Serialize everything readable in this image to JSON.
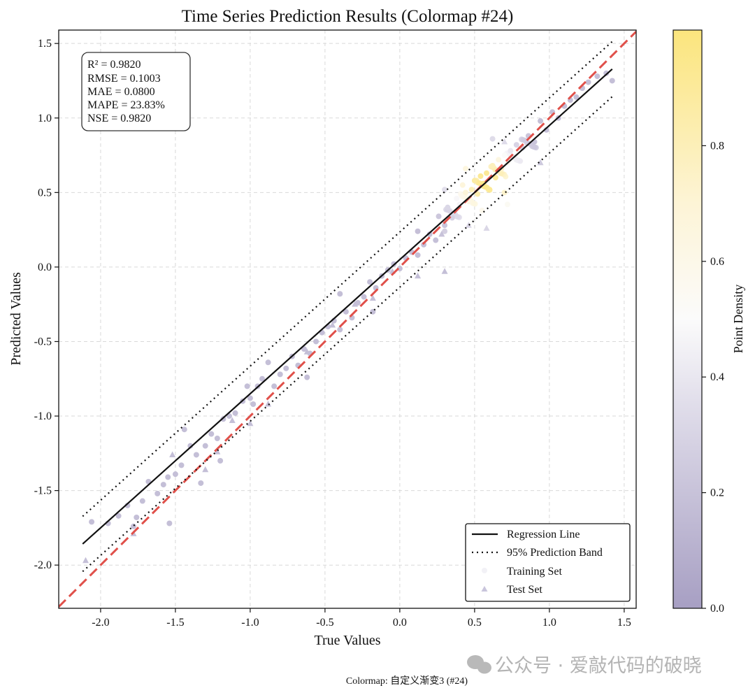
{
  "chart_data": {
    "type": "scatter",
    "title": "Time  Series  Prediction  Results  (Colormap  #24)",
    "xlabel": "True  Values",
    "ylabel": "Predicted  Values",
    "xlim": [
      -2.28,
      1.58
    ],
    "ylim": [
      -2.29,
      1.59
    ],
    "x_ticks": [
      -2.0,
      -1.5,
      -1.0,
      -0.5,
      0.0,
      0.5,
      1.0,
      1.5
    ],
    "y_ticks": [
      -2.0,
      -1.5,
      -1.0,
      -0.5,
      0.0,
      0.5,
      1.0,
      1.5
    ],
    "x_tick_labels": [
      "-2.0",
      "-1.5",
      "-1.0",
      "-0.5",
      "0.0",
      "0.5",
      "1.0",
      "1.5"
    ],
    "y_tick_labels": [
      "-2.0",
      "-1.5",
      "-1.0",
      "-0.5",
      "0.0",
      "0.5",
      "1.0",
      "1.5"
    ],
    "grid": true,
    "stats_lines": [
      "R²  =  0.9820",
      "RMSE  =  0.1003",
      "MAE  =  0.0800",
      "MAPE  =  23.83%",
      "NSE  =  0.9820"
    ],
    "regression": {
      "slope": 0.9,
      "intercept": 0.05,
      "x_range": [
        -2.12,
        1.42
      ]
    },
    "prediction_band": {
      "half_width": 0.185
    },
    "identity_line": {
      "slope": 1.0,
      "intercept": 0.0
    },
    "legend": {
      "position": "lower-right",
      "entries": [
        "Regression  Line",
        "95%  Prediction  Band",
        "Training  Set",
        "Test  Set"
      ]
    },
    "colorbar": {
      "label": "Point  Density",
      "range": [
        0.0,
        1.0
      ],
      "ticks": [
        0.0,
        0.2,
        0.4,
        0.6,
        0.8
      ],
      "tick_labels": [
        "0.0",
        "0.2",
        "0.4",
        "0.6",
        "0.8"
      ],
      "colors": [
        "#a79fc3",
        "#eceaf1",
        "#fdf6dc",
        "#fbe57d"
      ]
    },
    "series": [
      {
        "name": "Training  Set",
        "marker": "circle",
        "points": [
          [
            -2.06,
            -1.71
          ],
          [
            -1.95,
            -1.72
          ],
          [
            -1.88,
            -1.67
          ],
          [
            -1.82,
            -1.6
          ],
          [
            -1.78,
            -1.74
          ],
          [
            -1.72,
            -1.57
          ],
          [
            -1.68,
            -1.44
          ],
          [
            -1.62,
            -1.52
          ],
          [
            -1.58,
            -1.46
          ],
          [
            -1.55,
            -1.41
          ],
          [
            -1.5,
            -1.39
          ],
          [
            -1.46,
            -1.33
          ],
          [
            -1.44,
            -1.09
          ],
          [
            -1.4,
            -1.2
          ],
          [
            -1.36,
            -1.26
          ],
          [
            -1.33,
            -1.45
          ],
          [
            -1.3,
            -1.2
          ],
          [
            -1.26,
            -1.12
          ],
          [
            -1.22,
            -1.15
          ],
          [
            -1.18,
            -1.02
          ],
          [
            -1.14,
            -1.0
          ],
          [
            -1.1,
            -0.98
          ],
          [
            -1.05,
            -0.9
          ],
          [
            -1.0,
            -0.88
          ],
          [
            -0.98,
            -0.92
          ],
          [
            -0.95,
            -0.8
          ],
          [
            -0.92,
            -0.75
          ],
          [
            -0.88,
            -0.64
          ],
          [
            -0.84,
            -0.8
          ],
          [
            -0.8,
            -0.72
          ],
          [
            -0.76,
            -0.68
          ],
          [
            -0.72,
            -0.6
          ],
          [
            -0.68,
            -0.66
          ],
          [
            -0.64,
            -0.55
          ],
          [
            -0.6,
            -0.58
          ],
          [
            -0.56,
            -0.5
          ],
          [
            -0.52,
            -0.44
          ],
          [
            -0.48,
            -0.4
          ],
          [
            -0.44,
            -0.36
          ],
          [
            -0.4,
            -0.42
          ],
          [
            -0.36,
            -0.3
          ],
          [
            -0.32,
            -0.34
          ],
          [
            -0.28,
            -0.24
          ],
          [
            -0.24,
            -0.2
          ],
          [
            -0.2,
            -0.1
          ],
          [
            -0.16,
            -0.14
          ],
          [
            -0.12,
            -0.06
          ],
          [
            -0.08,
            -0.02
          ],
          [
            -0.04,
            0.02
          ],
          [
            0.0,
            -0.01
          ],
          [
            0.04,
            0.06
          ],
          [
            0.08,
            0.1
          ],
          [
            0.12,
            0.08
          ],
          [
            0.16,
            0.15
          ],
          [
            0.2,
            0.22
          ],
          [
            0.24,
            0.18
          ],
          [
            0.26,
            0.34
          ],
          [
            0.3,
            0.28
          ],
          [
            0.32,
            0.4
          ],
          [
            0.35,
            0.33
          ],
          [
            0.38,
            0.46
          ],
          [
            0.4,
            0.42
          ],
          [
            0.42,
            0.55
          ],
          [
            0.44,
            0.5
          ],
          [
            0.46,
            0.44
          ],
          [
            0.48,
            0.52
          ],
          [
            0.5,
            0.58
          ],
          [
            0.52,
            0.49
          ],
          [
            0.54,
            0.61
          ],
          [
            0.56,
            0.56
          ],
          [
            0.58,
            0.63
          ],
          [
            0.6,
            0.52
          ],
          [
            0.62,
            0.68
          ],
          [
            0.64,
            0.6
          ],
          [
            0.66,
            0.72
          ],
          [
            0.68,
            0.66
          ],
          [
            0.7,
            0.75
          ],
          [
            0.72,
            0.7
          ],
          [
            0.74,
            0.78
          ],
          [
            0.76,
            0.74
          ],
          [
            0.78,
            0.82
          ],
          [
            0.82,
            0.8
          ],
          [
            0.86,
            0.88
          ],
          [
            0.9,
            0.84
          ],
          [
            0.94,
            0.98
          ],
          [
            0.98,
            0.92
          ],
          [
            1.02,
            1.04
          ],
          [
            1.06,
            1.0
          ],
          [
            1.1,
            1.08
          ],
          [
            1.14,
            1.12
          ],
          [
            1.18,
            1.14
          ],
          [
            1.22,
            1.2
          ],
          [
            1.26,
            1.24
          ],
          [
            1.32,
            1.28
          ],
          [
            1.38,
            1.3
          ],
          [
            1.42,
            1.25
          ],
          [
            0.62,
            0.86
          ],
          [
            0.55,
            0.38
          ],
          [
            0.44,
            0.66
          ],
          [
            0.7,
            0.5
          ],
          [
            0.72,
            0.42
          ],
          [
            0.3,
            0.52
          ],
          [
            0.12,
            0.24
          ],
          [
            -0.18,
            -0.3
          ],
          [
            -0.4,
            -0.18
          ],
          [
            -0.62,
            -0.74
          ],
          [
            -1.02,
            -0.8
          ],
          [
            -1.2,
            -1.3
          ],
          [
            -1.54,
            -1.72
          ],
          [
            -1.76,
            -1.68
          ]
        ]
      },
      {
        "name": "Test  Set",
        "marker": "triangle",
        "points": [
          [
            -2.1,
            -1.97
          ],
          [
            -1.78,
            -1.79
          ],
          [
            -1.52,
            -1.26
          ],
          [
            -1.3,
            -1.36
          ],
          [
            -1.22,
            -1.24
          ],
          [
            -1.12,
            -1.03
          ],
          [
            -0.88,
            -0.92
          ],
          [
            -0.62,
            -0.57
          ],
          [
            -0.45,
            -0.39
          ],
          [
            -0.3,
            -0.25
          ],
          [
            -0.18,
            -0.21
          ],
          [
            -0.05,
            -0.03
          ],
          [
            0.12,
            -0.06
          ],
          [
            0.28,
            0.22
          ],
          [
            0.3,
            -0.03
          ],
          [
            0.46,
            0.28
          ],
          [
            0.7,
            0.84
          ],
          [
            0.94,
            0.7
          ],
          [
            -1.0,
            -1.05
          ],
          [
            0.58,
            0.26
          ]
        ]
      }
    ]
  },
  "footer": {
    "caption": "Colormap:  自定义渐变3  (#24)",
    "watermark": "公众号 · 爱敲代码的破晓"
  }
}
